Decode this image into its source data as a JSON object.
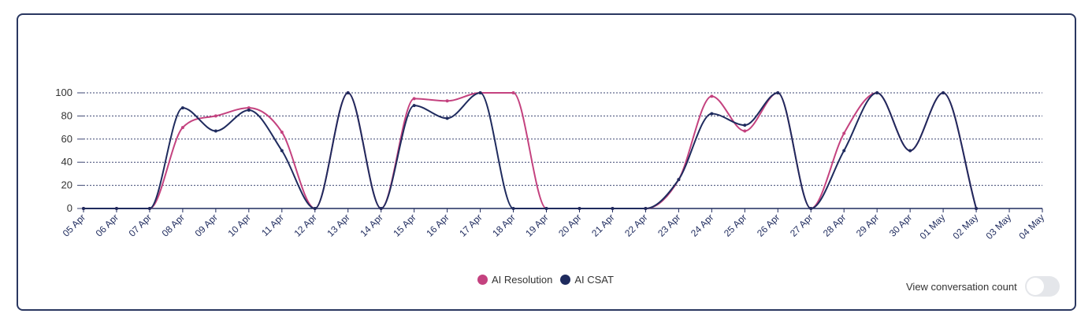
{
  "chart_data": {
    "type": "line",
    "title": "",
    "xlabel": "",
    "ylabel": "",
    "ylim": [
      0,
      100
    ],
    "yticks": [
      0,
      20,
      40,
      60,
      80,
      100
    ],
    "grid": true,
    "legend_position": "bottom-center",
    "categories": [
      "05 Apr",
      "06 Apr",
      "07 Apr",
      "08 Apr",
      "09 Apr",
      "10 Apr",
      "11 Apr",
      "12 Apr",
      "13 Apr",
      "14 Apr",
      "15 Apr",
      "16 Apr",
      "17 Apr",
      "18 Apr",
      "19 Apr",
      "20 Apr",
      "21 Apr",
      "22 Apr",
      "23 Apr",
      "24 Apr",
      "25 Apr",
      "26 Apr",
      "27 Apr",
      "28 Apr",
      "29 Apr",
      "30 Apr",
      "01 May",
      "02 May",
      "03 May",
      "04 May"
    ],
    "series": [
      {
        "name": "AI Resolution",
        "color": "#c4427f",
        "values": [
          0,
          0,
          0,
          70,
          80,
          87,
          66,
          0,
          100,
          0,
          95,
          93,
          100,
          100,
          0,
          0,
          0,
          0,
          25,
          97,
          67,
          100,
          0,
          65,
          100,
          50,
          100,
          0,
          null,
          null
        ]
      },
      {
        "name": "AI CSAT",
        "color": "#1f2b5e",
        "values": [
          0,
          0,
          0,
          87,
          67,
          85,
          50,
          0,
          100,
          0,
          89,
          78,
          100,
          0,
          0,
          0,
          0,
          0,
          25,
          82,
          72,
          100,
          0,
          50,
          100,
          50,
          100,
          0,
          null,
          null
        ]
      }
    ]
  },
  "legend": {
    "items": [
      {
        "label": "AI Resolution",
        "color": "#c4427f"
      },
      {
        "label": "AI CSAT",
        "color": "#1f2b5e"
      }
    ]
  },
  "toggle": {
    "label": "View conversation count",
    "checked": false
  }
}
